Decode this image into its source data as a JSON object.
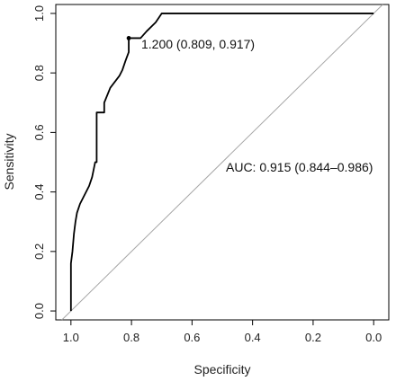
{
  "chart_data": {
    "type": "line",
    "xlabel": "Specificity",
    "ylabel": "Sensitivity",
    "xlim": [
      1.05,
      -0.05
    ],
    "ylim": [
      -0.03,
      1.03
    ],
    "x_ticks": [
      1.0,
      0.8,
      0.6,
      0.4,
      0.2,
      0.0
    ],
    "x_tick_labels": [
      "1.0",
      "0.8",
      "0.6",
      "0.4",
      "0.2",
      "0.0"
    ],
    "y_ticks": [
      0.0,
      0.2,
      0.4,
      0.6,
      0.8,
      1.0
    ],
    "y_tick_labels": [
      "0.0",
      "0.2",
      "0.4",
      "0.6",
      "0.8",
      "1.0"
    ],
    "series": [
      {
        "x": [
          1.0,
          1.0,
          0.995,
          0.99,
          0.985,
          0.98,
          0.975,
          0.97,
          0.96,
          0.95,
          0.94,
          0.93,
          0.92,
          0.915,
          0.915,
          0.915,
          0.89,
          0.89,
          0.87,
          0.855,
          0.84,
          0.83,
          0.82,
          0.809,
          0.809,
          0.77,
          0.77,
          0.75,
          0.72,
          0.7,
          0.0
        ],
        "y": [
          0.0,
          0.16,
          0.2,
          0.26,
          0.3,
          0.33,
          0.345,
          0.36,
          0.38,
          0.4,
          0.42,
          0.45,
          0.5,
          0.5,
          0.667,
          0.667,
          0.667,
          0.7,
          0.75,
          0.77,
          0.79,
          0.81,
          0.84,
          0.87,
          0.917,
          0.917,
          0.917,
          0.94,
          0.97,
          1.0,
          1.0
        ],
        "color": "#000000"
      }
    ],
    "reference_line": {
      "x": [
        1.0,
        0.0
      ],
      "y": [
        0.0,
        1.0
      ],
      "color": "#a6a6a6"
    },
    "threshold_point": {
      "x": 0.809,
      "y": 0.917
    },
    "annotations": {
      "threshold": "1.200 (0.809, 0.917)",
      "auc": "AUC: 0.915 (0.844–0.986)"
    },
    "grid": false,
    "legend": "none"
  }
}
